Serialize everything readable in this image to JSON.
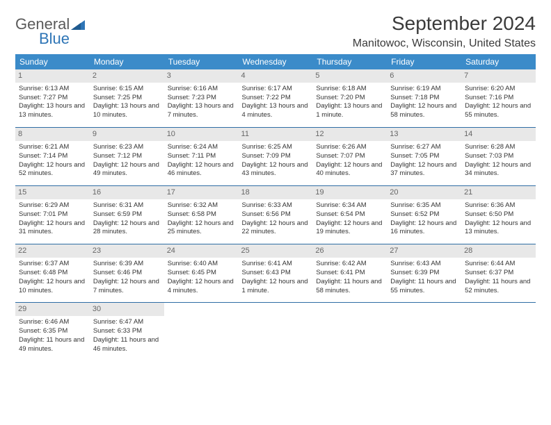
{
  "logo": {
    "general": "General",
    "blue": "Blue"
  },
  "title": "September 2024",
  "location": "Manitowoc, Wisconsin, United States",
  "colors": {
    "header_bg": "#3b8bc9",
    "header_text": "#ffffff",
    "daynum_bg": "#e8e8e8",
    "daynum_text": "#666666",
    "border": "#2e6da4",
    "body_text": "#333333",
    "logo_gray": "#5a5a5a",
    "logo_blue": "#2e75b6"
  },
  "day_headers": [
    "Sunday",
    "Monday",
    "Tuesday",
    "Wednesday",
    "Thursday",
    "Friday",
    "Saturday"
  ],
  "weeks": [
    [
      {
        "n": "1",
        "sr": "Sunrise: 6:13 AM",
        "ss": "Sunset: 7:27 PM",
        "dl": "Daylight: 13 hours and 13 minutes."
      },
      {
        "n": "2",
        "sr": "Sunrise: 6:15 AM",
        "ss": "Sunset: 7:25 PM",
        "dl": "Daylight: 13 hours and 10 minutes."
      },
      {
        "n": "3",
        "sr": "Sunrise: 6:16 AM",
        "ss": "Sunset: 7:23 PM",
        "dl": "Daylight: 13 hours and 7 minutes."
      },
      {
        "n": "4",
        "sr": "Sunrise: 6:17 AM",
        "ss": "Sunset: 7:22 PM",
        "dl": "Daylight: 13 hours and 4 minutes."
      },
      {
        "n": "5",
        "sr": "Sunrise: 6:18 AM",
        "ss": "Sunset: 7:20 PM",
        "dl": "Daylight: 13 hours and 1 minute."
      },
      {
        "n": "6",
        "sr": "Sunrise: 6:19 AM",
        "ss": "Sunset: 7:18 PM",
        "dl": "Daylight: 12 hours and 58 minutes."
      },
      {
        "n": "7",
        "sr": "Sunrise: 6:20 AM",
        "ss": "Sunset: 7:16 PM",
        "dl": "Daylight: 12 hours and 55 minutes."
      }
    ],
    [
      {
        "n": "8",
        "sr": "Sunrise: 6:21 AM",
        "ss": "Sunset: 7:14 PM",
        "dl": "Daylight: 12 hours and 52 minutes."
      },
      {
        "n": "9",
        "sr": "Sunrise: 6:23 AM",
        "ss": "Sunset: 7:12 PM",
        "dl": "Daylight: 12 hours and 49 minutes."
      },
      {
        "n": "10",
        "sr": "Sunrise: 6:24 AM",
        "ss": "Sunset: 7:11 PM",
        "dl": "Daylight: 12 hours and 46 minutes."
      },
      {
        "n": "11",
        "sr": "Sunrise: 6:25 AM",
        "ss": "Sunset: 7:09 PM",
        "dl": "Daylight: 12 hours and 43 minutes."
      },
      {
        "n": "12",
        "sr": "Sunrise: 6:26 AM",
        "ss": "Sunset: 7:07 PM",
        "dl": "Daylight: 12 hours and 40 minutes."
      },
      {
        "n": "13",
        "sr": "Sunrise: 6:27 AM",
        "ss": "Sunset: 7:05 PM",
        "dl": "Daylight: 12 hours and 37 minutes."
      },
      {
        "n": "14",
        "sr": "Sunrise: 6:28 AM",
        "ss": "Sunset: 7:03 PM",
        "dl": "Daylight: 12 hours and 34 minutes."
      }
    ],
    [
      {
        "n": "15",
        "sr": "Sunrise: 6:29 AM",
        "ss": "Sunset: 7:01 PM",
        "dl": "Daylight: 12 hours and 31 minutes."
      },
      {
        "n": "16",
        "sr": "Sunrise: 6:31 AM",
        "ss": "Sunset: 6:59 PM",
        "dl": "Daylight: 12 hours and 28 minutes."
      },
      {
        "n": "17",
        "sr": "Sunrise: 6:32 AM",
        "ss": "Sunset: 6:58 PM",
        "dl": "Daylight: 12 hours and 25 minutes."
      },
      {
        "n": "18",
        "sr": "Sunrise: 6:33 AM",
        "ss": "Sunset: 6:56 PM",
        "dl": "Daylight: 12 hours and 22 minutes."
      },
      {
        "n": "19",
        "sr": "Sunrise: 6:34 AM",
        "ss": "Sunset: 6:54 PM",
        "dl": "Daylight: 12 hours and 19 minutes."
      },
      {
        "n": "20",
        "sr": "Sunrise: 6:35 AM",
        "ss": "Sunset: 6:52 PM",
        "dl": "Daylight: 12 hours and 16 minutes."
      },
      {
        "n": "21",
        "sr": "Sunrise: 6:36 AM",
        "ss": "Sunset: 6:50 PM",
        "dl": "Daylight: 12 hours and 13 minutes."
      }
    ],
    [
      {
        "n": "22",
        "sr": "Sunrise: 6:37 AM",
        "ss": "Sunset: 6:48 PM",
        "dl": "Daylight: 12 hours and 10 minutes."
      },
      {
        "n": "23",
        "sr": "Sunrise: 6:39 AM",
        "ss": "Sunset: 6:46 PM",
        "dl": "Daylight: 12 hours and 7 minutes."
      },
      {
        "n": "24",
        "sr": "Sunrise: 6:40 AM",
        "ss": "Sunset: 6:45 PM",
        "dl": "Daylight: 12 hours and 4 minutes."
      },
      {
        "n": "25",
        "sr": "Sunrise: 6:41 AM",
        "ss": "Sunset: 6:43 PM",
        "dl": "Daylight: 12 hours and 1 minute."
      },
      {
        "n": "26",
        "sr": "Sunrise: 6:42 AM",
        "ss": "Sunset: 6:41 PM",
        "dl": "Daylight: 11 hours and 58 minutes."
      },
      {
        "n": "27",
        "sr": "Sunrise: 6:43 AM",
        "ss": "Sunset: 6:39 PM",
        "dl": "Daylight: 11 hours and 55 minutes."
      },
      {
        "n": "28",
        "sr": "Sunrise: 6:44 AM",
        "ss": "Sunset: 6:37 PM",
        "dl": "Daylight: 11 hours and 52 minutes."
      }
    ],
    [
      {
        "n": "29",
        "sr": "Sunrise: 6:46 AM",
        "ss": "Sunset: 6:35 PM",
        "dl": "Daylight: 11 hours and 49 minutes."
      },
      {
        "n": "30",
        "sr": "Sunrise: 6:47 AM",
        "ss": "Sunset: 6:33 PM",
        "dl": "Daylight: 11 hours and 46 minutes."
      },
      null,
      null,
      null,
      null,
      null
    ]
  ]
}
